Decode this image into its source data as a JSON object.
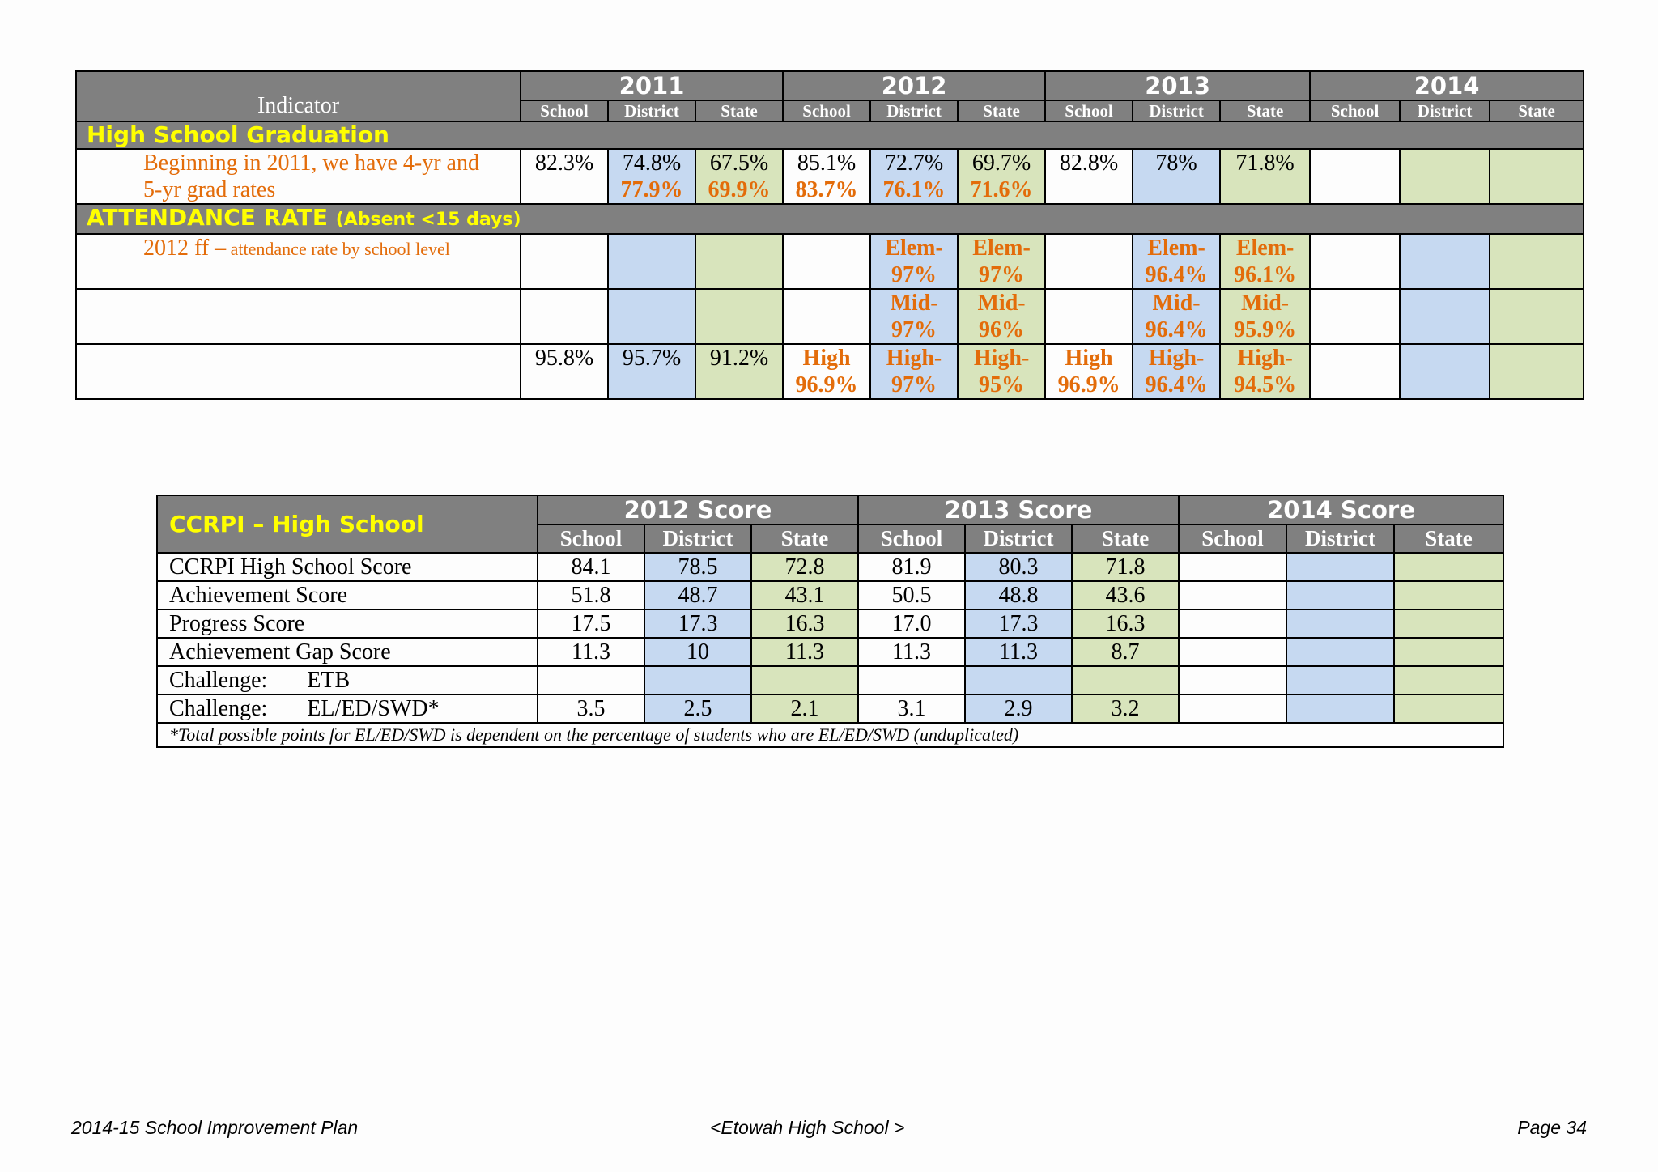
{
  "table1": {
    "indicator_label": "Indicator",
    "years": [
      "2011",
      "2012",
      "2013",
      "2014"
    ],
    "sub_headers": [
      "School",
      "District",
      "State"
    ],
    "section_graduation": "High School Graduation",
    "graduation_label_line1": "Beginning in 2011, we have 4-yr and",
    "graduation_label_line2": "5-yr grad rates",
    "graduation": {
      "y2011": {
        "school": "82.3%",
        "district": "74.8%",
        "district2": "77.9%",
        "state": "67.5%",
        "state2": "69.9%"
      },
      "y2012": {
        "school": "85.1%",
        "school2": "83.7%",
        "district": "72.7%",
        "district2": "76.1%",
        "state": "69.7%",
        "state2": "71.6%"
      },
      "y2013": {
        "school": "82.8%",
        "district": "78%",
        "state": "71.8%"
      }
    },
    "section_attendance": "ATTENDANCE RATE",
    "section_attendance_sub": "(Absent <15 days)",
    "attendance_label_main": "2012 ff –",
    "attendance_label_sub": " attendance rate by school level",
    "attendance": {
      "elem": {
        "d2012": "Elem-",
        "d2012b": "97%",
        "s2012": "Elem-",
        "s2012b": "97%",
        "d2013": "Elem-",
        "d2013b": "96.4%",
        "s2013": "Elem-",
        "s2013b": "96.1%"
      },
      "mid": {
        "d2012": "Mid-",
        "d2012b": "97%",
        "s2012": "Mid-",
        "s2012b": "96%",
        "d2013": "Mid-",
        "d2013b": "96.4%",
        "s2013": "Mid-",
        "s2013b": "95.9%"
      },
      "high": {
        "sc2011": "95.8%",
        "d2011": "95.7%",
        "st2011": "91.2%",
        "sc2012": "High",
        "sc2012b": "96.9%",
        "d2012": "High-",
        "d2012b": "97%",
        "s2012": "High-",
        "s2012b": "95%",
        "sc2013": "High",
        "sc2013b": "96.9%",
        "d2013": "High-",
        "d2013b": "96.4%",
        "s2013": "High-",
        "s2013b": "94.5%"
      }
    }
  },
  "table2": {
    "title": "CCRPI – High School",
    "years": [
      "2012 Score",
      "2013 Score",
      "2014 Score"
    ],
    "sub_headers": [
      "School",
      "District",
      "State"
    ],
    "rows": [
      {
        "label": "CCRPI High School Score",
        "v": [
          "84.1",
          "78.5",
          "72.8",
          "81.9",
          "80.3",
          "71.8",
          "",
          "",
          ""
        ]
      },
      {
        "label": "Achievement Score",
        "v": [
          "51.8",
          "48.7",
          "43.1",
          "50.5",
          "48.8",
          "43.6",
          "",
          "",
          ""
        ]
      },
      {
        "label": "Progress Score",
        "v": [
          "17.5",
          "17.3",
          "16.3",
          "17.0",
          "17.3",
          "16.3",
          "",
          "",
          ""
        ]
      },
      {
        "label": "Achievement Gap Score",
        "v": [
          "11.3",
          "10",
          "11.3",
          "11.3",
          "11.3",
          "8.7",
          "",
          "",
          ""
        ]
      },
      {
        "label": "Challenge:       ETB",
        "v": [
          "",
          "",
          "",
          "",
          "",
          "",
          "",
          "",
          ""
        ]
      },
      {
        "label": "Challenge:       EL/ED/SWD*",
        "v": [
          "3.5",
          "2.5",
          "2.1",
          "3.1",
          "2.9",
          "3.2",
          "",
          "",
          ""
        ]
      }
    ],
    "note": "*Total possible points for EL/ED/SWD is dependent on the percentage of students who are EL/ED/SWD (unduplicated)"
  },
  "footer": {
    "left": "2014-15 School Improvement Plan",
    "center": "<Etowah High School  >",
    "right": "Page 34"
  }
}
